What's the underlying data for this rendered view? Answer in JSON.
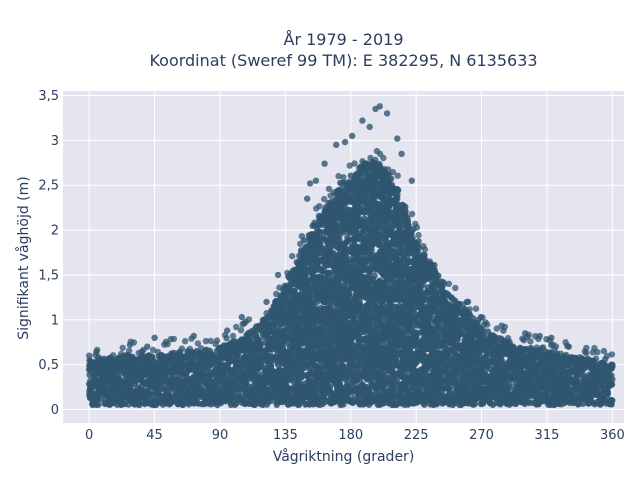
{
  "chart_data": {
    "type": "scatter",
    "title": "År 1979 - 2019",
    "subtitle": "Koordinat (Sweref 99 TM): E 382295, N 6135633",
    "xlabel": "Vågriktning (grader)",
    "ylabel": "Signifikant våghöjd (m)",
    "xlim": [
      -18,
      368
    ],
    "ylim": [
      -0.15,
      3.55
    ],
    "x_ticks": [
      0,
      45,
      90,
      135,
      180,
      225,
      270,
      315,
      360
    ],
    "x_tick_labels": [
      "0",
      "45",
      "90",
      "135",
      "180",
      "225",
      "270",
      "315",
      "360"
    ],
    "y_ticks": [
      0,
      0.5,
      1,
      1.5,
      2,
      2.5,
      3,
      3.5
    ],
    "y_tick_labels": [
      "0",
      "0,5",
      "1",
      "1,5",
      "2",
      "2,5",
      "3",
      "3,5"
    ],
    "grid": true,
    "legend": "none",
    "colors": {
      "marker": "#2f5670",
      "plot_background": "#e5e5f0",
      "grid": "#ffffff",
      "text": "#2a3f5f"
    },
    "envelope": {
      "x": [
        0,
        15,
        30,
        45,
        60,
        75,
        90,
        105,
        115,
        125,
        135,
        145,
        150,
        160,
        170,
        180,
        190,
        200,
        210,
        220,
        230,
        240,
        250,
        260,
        270,
        285,
        300,
        315,
        330,
        345,
        360
      ],
      "upper_height": [
        0.55,
        0.58,
        0.62,
        0.62,
        0.64,
        0.66,
        0.7,
        0.8,
        0.92,
        1.1,
        1.4,
        1.75,
        1.95,
        2.2,
        2.45,
        2.6,
        2.75,
        2.75,
        2.55,
        2.15,
        1.75,
        1.5,
        1.25,
        1.1,
        0.9,
        0.78,
        0.7,
        0.65,
        0.6,
        0.55,
        0.5
      ]
    },
    "notable_points": [
      {
        "x": 200,
        "y": 3.38
      },
      {
        "x": 197,
        "y": 3.35
      },
      {
        "x": 205,
        "y": 3.3
      },
      {
        "x": 188,
        "y": 3.22
      },
      {
        "x": 193,
        "y": 3.15
      },
      {
        "x": 181,
        "y": 3.05
      },
      {
        "x": 212,
        "y": 3.02
      },
      {
        "x": 176,
        "y": 2.98
      },
      {
        "x": 215,
        "y": 2.85
      },
      {
        "x": 170,
        "y": 2.95
      },
      {
        "x": 162,
        "y": 2.74
      },
      {
        "x": 156,
        "y": 2.55
      },
      {
        "x": 150,
        "y": 2.35
      },
      {
        "x": 152,
        "y": 2.52
      },
      {
        "x": 222,
        "y": 2.55
      },
      {
        "x": 130,
        "y": 1.5
      },
      {
        "x": 122,
        "y": 1.2
      },
      {
        "x": 105,
        "y": 1.03
      },
      {
        "x": 95,
        "y": 0.88
      },
      {
        "x": 72,
        "y": 0.82
      },
      {
        "x": 45,
        "y": 0.8
      },
      {
        "x": 28,
        "y": 0.72
      },
      {
        "x": 5,
        "y": 0.64
      },
      {
        "x": 0,
        "y": 0.6
      },
      {
        "x": 40,
        "y": 0.7
      },
      {
        "x": 260,
        "y": 1.2
      },
      {
        "x": 268,
        "y": 1.0
      },
      {
        "x": 285,
        "y": 0.88
      },
      {
        "x": 300,
        "y": 0.85
      },
      {
        "x": 310,
        "y": 0.82
      },
      {
        "x": 318,
        "y": 0.8
      },
      {
        "x": 330,
        "y": 0.7
      },
      {
        "x": 342,
        "y": 0.63
      },
      {
        "x": 355,
        "y": 0.56
      },
      {
        "x": 360,
        "y": 0.5
      }
    ]
  }
}
